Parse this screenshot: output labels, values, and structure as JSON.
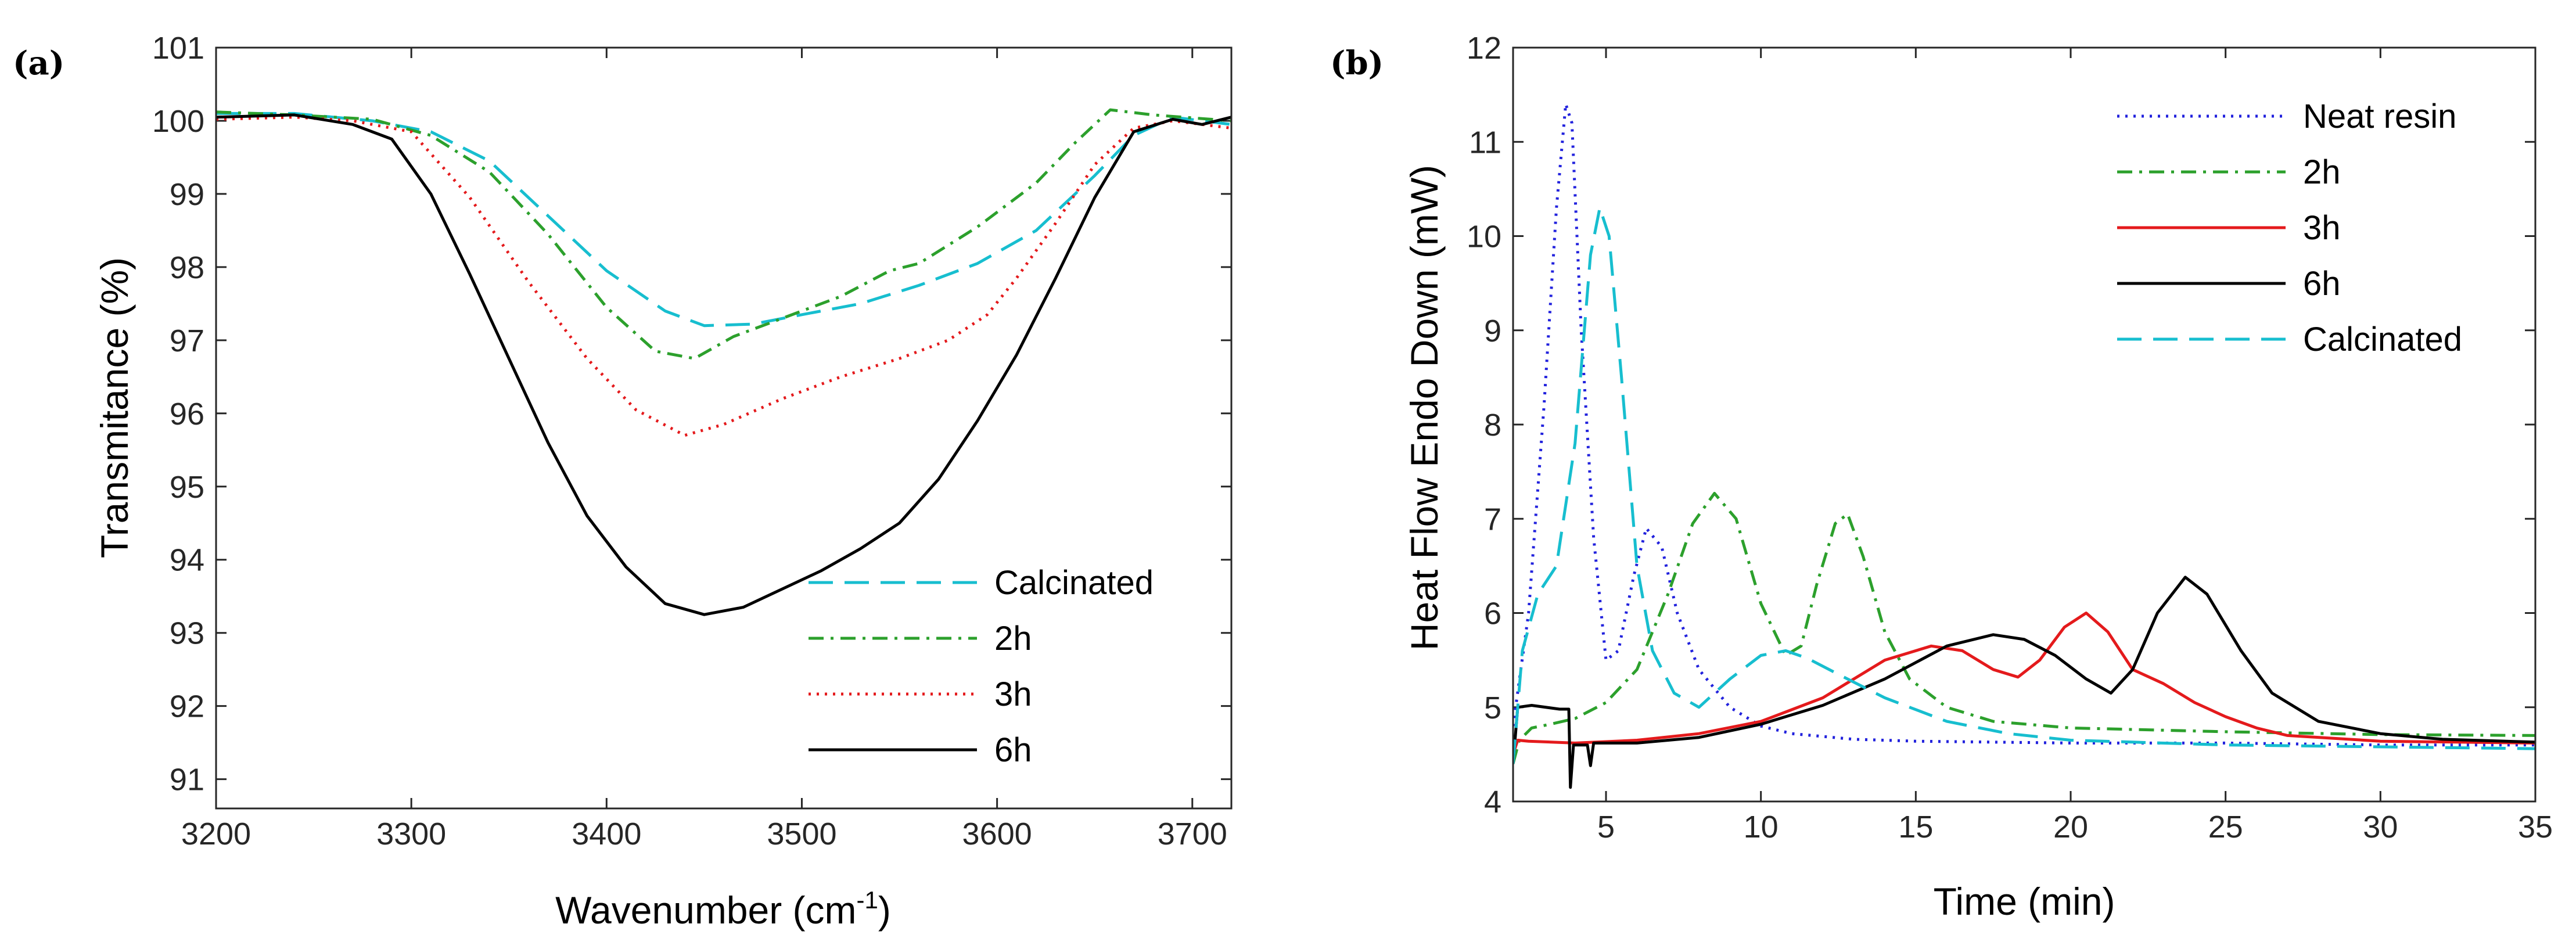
{
  "chart_data": [
    {
      "panel": "(a)",
      "type": "line",
      "title": "",
      "xlabel": "Wavenumber (cm",
      "xlabel_sup": "-1",
      "xlabel_end": ")",
      "ylabel": "Transmitance (%)",
      "xlim": [
        3200,
        3720
      ],
      "ylim": [
        90.6,
        101
      ],
      "xticks": [
        3200,
        3300,
        3400,
        3500,
        3600,
        3700
      ],
      "yticks": [
        91,
        92,
        93,
        94,
        95,
        96,
        97,
        98,
        99,
        100,
        101
      ],
      "legend_position": "lower-right",
      "series": [
        {
          "name": "Calcinated",
          "color": "#17becf",
          "dash": "long-dash",
          "points": [
            [
              3200,
              100.1
            ],
            [
              3240,
              100.1
            ],
            [
              3280,
              100.0
            ],
            [
              3310,
              99.85
            ],
            [
              3340,
              99.45
            ],
            [
              3370,
              98.7
            ],
            [
              3400,
              97.95
            ],
            [
              3430,
              97.4
            ],
            [
              3450,
              97.2
            ],
            [
              3475,
              97.22
            ],
            [
              3500,
              97.35
            ],
            [
              3530,
              97.5
            ],
            [
              3560,
              97.75
            ],
            [
              3590,
              98.05
            ],
            [
              3620,
              98.5
            ],
            [
              3650,
              99.25
            ],
            [
              3670,
              99.8
            ],
            [
              3690,
              100.05
            ],
            [
              3720,
              99.95
            ]
          ]
        },
        {
          "name": "2h",
          "color": "#2ca02c",
          "dash": "dash-dot",
          "points": [
            [
              3200,
              100.12
            ],
            [
              3240,
              100.08
            ],
            [
              3280,
              100.02
            ],
            [
              3310,
              99.8
            ],
            [
              3340,
              99.3
            ],
            [
              3370,
              98.45
            ],
            [
              3400,
              97.45
            ],
            [
              3425,
              96.85
            ],
            [
              3445,
              96.75
            ],
            [
              3465,
              97.05
            ],
            [
              3490,
              97.3
            ],
            [
              3520,
              97.6
            ],
            [
              3545,
              97.95
            ],
            [
              3560,
              98.05
            ],
            [
              3590,
              98.55
            ],
            [
              3620,
              99.15
            ],
            [
              3640,
              99.7
            ],
            [
              3658,
              100.15
            ],
            [
              3680,
              100.08
            ],
            [
              3720,
              100.0
            ]
          ]
        },
        {
          "name": "3h",
          "color": "#e41a1c",
          "dash": "dot",
          "points": [
            [
              3200,
              100.02
            ],
            [
              3240,
              100.05
            ],
            [
              3270,
              100.0
            ],
            [
              3300,
              99.85
            ],
            [
              3330,
              98.95
            ],
            [
              3360,
              97.8
            ],
            [
              3390,
              96.75
            ],
            [
              3415,
              96.05
            ],
            [
              3440,
              95.7
            ],
            [
              3460,
              95.85
            ],
            [
              3490,
              96.2
            ],
            [
              3520,
              96.5
            ],
            [
              3550,
              96.75
            ],
            [
              3575,
              97.0
            ],
            [
              3595,
              97.35
            ],
            [
              3610,
              97.85
            ],
            [
              3630,
              98.6
            ],
            [
              3650,
              99.4
            ],
            [
              3670,
              99.9
            ],
            [
              3690,
              100.0
            ],
            [
              3720,
              99.9
            ]
          ]
        },
        {
          "name": "6h",
          "color": "#000000",
          "dash": "solid",
          "points": [
            [
              3200,
              100.05
            ],
            [
              3240,
              100.08
            ],
            [
              3270,
              99.95
            ],
            [
              3290,
              99.75
            ],
            [
              3310,
              99.0
            ],
            [
              3330,
              97.9
            ],
            [
              3350,
              96.75
            ],
            [
              3370,
              95.6
            ],
            [
              3390,
              94.6
            ],
            [
              3410,
              93.9
            ],
            [
              3430,
              93.4
            ],
            [
              3450,
              93.25
            ],
            [
              3470,
              93.35
            ],
            [
              3490,
              93.6
            ],
            [
              3510,
              93.85
            ],
            [
              3530,
              94.15
            ],
            [
              3550,
              94.5
            ],
            [
              3570,
              95.1
            ],
            [
              3590,
              95.9
            ],
            [
              3610,
              96.8
            ],
            [
              3630,
              97.85
            ],
            [
              3650,
              98.95
            ],
            [
              3670,
              99.85
            ],
            [
              3690,
              100.02
            ],
            [
              3705,
              99.95
            ],
            [
              3720,
              100.05
            ]
          ]
        }
      ]
    },
    {
      "panel": "(b)",
      "type": "line",
      "title": "",
      "xlabel": "Time (min)",
      "ylabel": "Heat Flow Endo Down (mW)",
      "xlim": [
        2,
        35
      ],
      "ylim": [
        4,
        12
      ],
      "xticks": [
        5,
        10,
        15,
        20,
        25,
        30,
        35
      ],
      "yticks": [
        4,
        5,
        6,
        7,
        8,
        9,
        10,
        11,
        12
      ],
      "legend_position": "top-right",
      "series": [
        {
          "name": "Neat resin",
          "color": "#2222dd",
          "dash": "dot",
          "points": [
            [
              2,
              4.8
            ],
            [
              2.5,
              6.0
            ],
            [
              3.0,
              8.2
            ],
            [
              3.4,
              10.3
            ],
            [
              3.7,
              11.4
            ],
            [
              3.9,
              11.2
            ],
            [
              4.2,
              9.0
            ],
            [
              4.6,
              6.8
            ],
            [
              5.0,
              5.5
            ],
            [
              5.4,
              5.6
            ],
            [
              5.9,
              6.4
            ],
            [
              6.3,
              6.9
            ],
            [
              6.8,
              6.7
            ],
            [
              7.3,
              6.0
            ],
            [
              8,
              5.4
            ],
            [
              9,
              5.0
            ],
            [
              10,
              4.8
            ],
            [
              11,
              4.72
            ],
            [
              13,
              4.66
            ],
            [
              15,
              4.64
            ],
            [
              20,
              4.62
            ],
            [
              25,
              4.62
            ],
            [
              30,
              4.6
            ],
            [
              35,
              4.6
            ]
          ]
        },
        {
          "name": "2h",
          "color": "#2ca02c",
          "dash": "dash-dot",
          "points": [
            [
              2,
              4.4
            ],
            [
              2.2,
              4.65
            ],
            [
              2.6,
              4.78
            ],
            [
              3.2,
              4.82
            ],
            [
              4,
              4.88
            ],
            [
              5,
              5.05
            ],
            [
              6,
              5.4
            ],
            [
              7,
              6.2
            ],
            [
              7.8,
              6.95
            ],
            [
              8.5,
              7.27
            ],
            [
              9.2,
              7.0
            ],
            [
              10,
              6.1
            ],
            [
              10.8,
              5.55
            ],
            [
              11.3,
              5.65
            ],
            [
              11.8,
              6.3
            ],
            [
              12.4,
              6.95
            ],
            [
              12.8,
              7.05
            ],
            [
              13.3,
              6.6
            ],
            [
              14,
              5.8
            ],
            [
              14.8,
              5.3
            ],
            [
              16,
              5.0
            ],
            [
              17.5,
              4.85
            ],
            [
              20,
              4.78
            ],
            [
              25,
              4.74
            ],
            [
              30,
              4.71
            ],
            [
              35,
              4.7
            ]
          ]
        },
        {
          "name": "3h",
          "color": "#e41a1c",
          "dash": "solid",
          "points": [
            [
              2,
              4.5
            ],
            [
              2.15,
              4.65
            ],
            [
              2.5,
              4.64
            ],
            [
              4,
              4.62
            ],
            [
              6,
              4.65
            ],
            [
              8,
              4.72
            ],
            [
              10,
              4.85
            ],
            [
              12,
              5.1
            ],
            [
              14,
              5.5
            ],
            [
              15.5,
              5.65
            ],
            [
              16.5,
              5.6
            ],
            [
              17.5,
              5.4
            ],
            [
              18.3,
              5.32
            ],
            [
              19,
              5.5
            ],
            [
              19.8,
              5.85
            ],
            [
              20.5,
              6.0
            ],
            [
              21.2,
              5.8
            ],
            [
              22,
              5.4
            ],
            [
              23,
              5.25
            ],
            [
              24,
              5.05
            ],
            [
              25,
              4.9
            ],
            [
              26,
              4.78
            ],
            [
              27,
              4.7
            ],
            [
              30,
              4.64
            ],
            [
              35,
              4.62
            ]
          ]
        },
        {
          "name": "6h",
          "color": "#000000",
          "dash": "solid",
          "points": [
            [
              2,
              4.4
            ],
            [
              2.15,
              5.0
            ],
            [
              2.6,
              5.02
            ],
            [
              3.5,
              4.98
            ],
            [
              3.8,
              4.98
            ],
            [
              3.85,
              4.15
            ],
            [
              3.95,
              4.6
            ],
            [
              4.4,
              4.6
            ],
            [
              4.5,
              4.38
            ],
            [
              4.6,
              4.62
            ],
            [
              6,
              4.62
            ],
            [
              8,
              4.68
            ],
            [
              10,
              4.82
            ],
            [
              12,
              5.02
            ],
            [
              14,
              5.3
            ],
            [
              16,
              5.65
            ],
            [
              17.5,
              5.77
            ],
            [
              18.5,
              5.72
            ],
            [
              19.5,
              5.55
            ],
            [
              20.5,
              5.3
            ],
            [
              21.3,
              5.15
            ],
            [
              22,
              5.4
            ],
            [
              22.8,
              6.0
            ],
            [
              23.7,
              6.38
            ],
            [
              24.4,
              6.2
            ],
            [
              25.5,
              5.6
            ],
            [
              26.5,
              5.15
            ],
            [
              28,
              4.85
            ],
            [
              30,
              4.72
            ],
            [
              32,
              4.66
            ],
            [
              35,
              4.63
            ]
          ]
        },
        {
          "name": "Calcinated",
          "color": "#17becf",
          "dash": "long-dash",
          "points": [
            [
              2,
              4.4
            ],
            [
              2.3,
              5.6
            ],
            [
              2.8,
              6.2
            ],
            [
              3.4,
              6.5
            ],
            [
              4.0,
              7.8
            ],
            [
              4.5,
              9.8
            ],
            [
              4.8,
              10.3
            ],
            [
              5.1,
              10.0
            ],
            [
              5.5,
              8.5
            ],
            [
              6.0,
              6.5
            ],
            [
              6.5,
              5.6
            ],
            [
              7.2,
              5.15
            ],
            [
              8,
              5.0
            ],
            [
              9,
              5.3
            ],
            [
              10,
              5.55
            ],
            [
              10.8,
              5.6
            ],
            [
              11.5,
              5.52
            ],
            [
              12.5,
              5.35
            ],
            [
              14,
              5.1
            ],
            [
              16,
              4.85
            ],
            [
              18,
              4.72
            ],
            [
              20,
              4.65
            ],
            [
              25,
              4.6
            ],
            [
              30,
              4.58
            ],
            [
              35,
              4.56
            ]
          ]
        }
      ]
    }
  ]
}
